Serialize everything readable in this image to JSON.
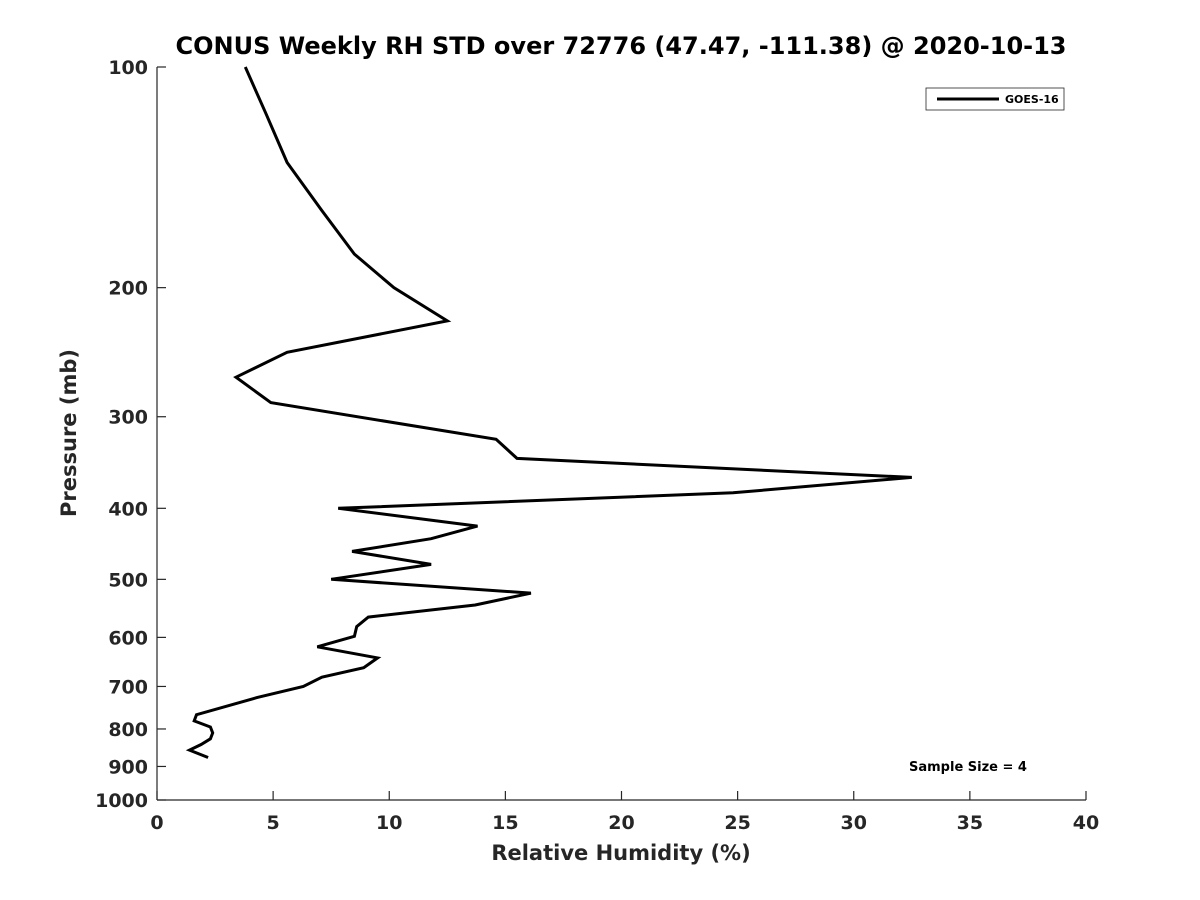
{
  "chart_data": {
    "type": "line",
    "title": "CONUS Weekly RH STD over 72776 (47.47, -111.38) @ 2020-10-13",
    "xlabel": "Relative Humidity (%)",
    "ylabel": "Pressure (mb)",
    "xlim": [
      0,
      40
    ],
    "ylim": [
      100,
      1000
    ],
    "yscale": "log",
    "y_reversed": true,
    "x_ticks": [
      0,
      5,
      10,
      15,
      20,
      25,
      30,
      35,
      40
    ],
    "x_tick_labels": [
      "0",
      "5",
      "10",
      "15",
      "20",
      "25",
      "30",
      "35",
      "40"
    ],
    "y_ticks": [
      100,
      200,
      300,
      400,
      500,
      600,
      700,
      800,
      900,
      1000
    ],
    "y_tick_labels": [
      "100",
      "200",
      "300",
      "400",
      "500",
      "600",
      "700",
      "800",
      "900",
      "1000"
    ],
    "grid": false,
    "legend_position": "top-right",
    "series": [
      {
        "name": "GOES-16",
        "color": "#000000",
        "x": [
          3.8,
          4.7,
          5.6,
          7.1,
          8.5,
          10.2,
          12.5,
          5.6,
          3.4,
          4.9,
          14.6,
          15.5,
          32.5,
          24.8,
          7.8,
          13.8,
          11.8,
          8.4,
          11.8,
          7.5,
          16.1,
          13.7,
          9.1,
          8.6,
          8.5,
          6.9,
          9.5,
          8.9,
          7.1,
          6.3,
          4.3,
          1.7,
          1.6,
          2.3,
          2.4,
          2.3,
          1.9,
          1.4,
          2.2
        ],
        "y": [
          100,
          116,
          135,
          157,
          180,
          200,
          222,
          245,
          265,
          287,
          322,
          342,
          363,
          381,
          400,
          423,
          440,
          458,
          477,
          500,
          522,
          542,
          563,
          580,
          598,
          618,
          640,
          660,
          680,
          700,
          725,
          765,
          780,
          795,
          810,
          825,
          840,
          855,
          875
        ]
      }
    ],
    "annotations": [
      "Sample Size = 4"
    ]
  }
}
